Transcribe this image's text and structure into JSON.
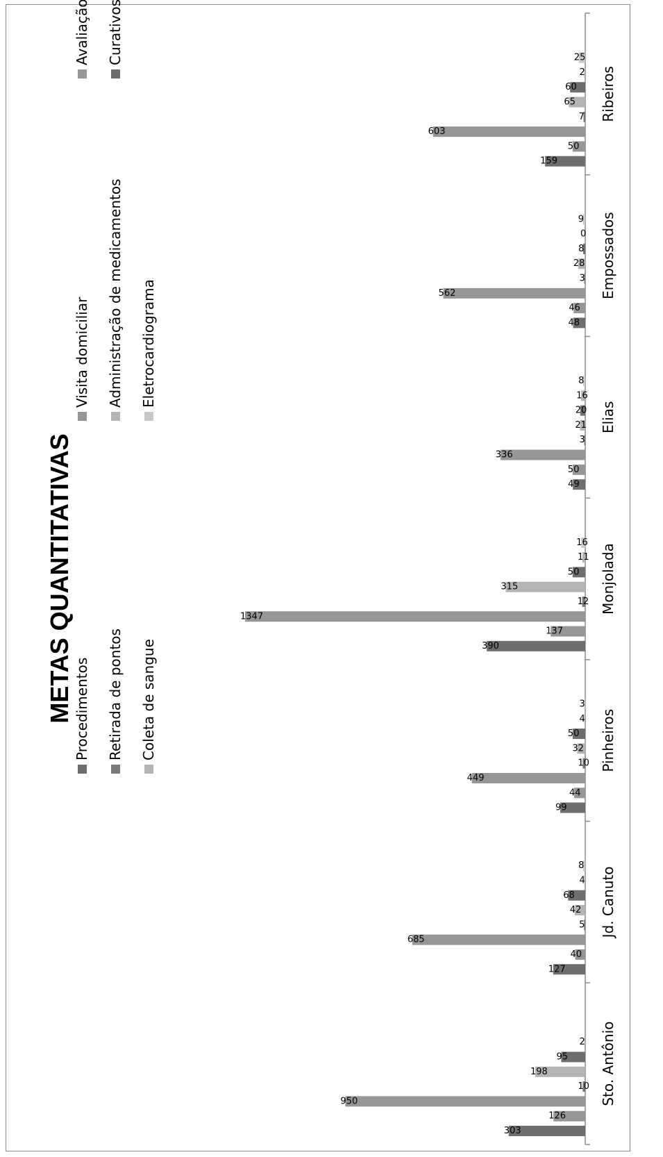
{
  "chart_data": {
    "type": "bar",
    "orientation": "rotated-90-clockwise",
    "title": "METAS QUANTITATIVAS",
    "categories": [
      "Sto. Antônio",
      "Jd. Canuto",
      "Pinheiros",
      "Monjolada",
      "Elias",
      "Empossados",
      "Ribeiros"
    ],
    "series": [
      {
        "name": "Procedimentos",
        "color": "#6e6e6e",
        "values": [
          303,
          127,
          99,
          390,
          49,
          48,
          159
        ]
      },
      {
        "name": "Avaliação antropométrica",
        "color": "#969696",
        "values": [
          126,
          40,
          44,
          137,
          50,
          46,
          50
        ]
      },
      {
        "name": "Visita domiciliar",
        "color": "#969696",
        "values": [
          950,
          685,
          449,
          1347,
          336,
          562,
          603
        ]
      },
      {
        "name": "Retirada de pontos",
        "color": "#7a7a7a",
        "values": [
          10,
          5,
          10,
          12,
          3,
          3,
          7
        ]
      },
      {
        "name": "Administração de medicamentos",
        "color": "#b4b4b4",
        "values": [
          198,
          42,
          32,
          315,
          21,
          28,
          65
        ]
      },
      {
        "name": "Curativos",
        "color": "#6e6e6e",
        "values": [
          95,
          68,
          50,
          50,
          20,
          8,
          60
        ]
      },
      {
        "name": "Coleta de sangue",
        "color": "#b4b4b4",
        "values": [
          2,
          4,
          4,
          11,
          16,
          0,
          2
        ]
      },
      {
        "name": "Eletrocardiograma",
        "color": "#c8c8c8",
        "values": [
          null,
          8,
          3,
          16,
          8,
          9,
          25
        ]
      }
    ],
    "legend": {
      "placement": "top",
      "columns": [
        [
          "Procedimentos",
          "Retirada de pontos",
          "Coleta de sangue"
        ],
        [
          "Visita domiciliar",
          "Administração de medicamentos",
          "Eletrocardiograma"
        ],
        [
          "Avaliação antropométrica",
          "Curativos"
        ]
      ]
    },
    "ylim": [
      0,
      1400
    ],
    "grid": false
  }
}
